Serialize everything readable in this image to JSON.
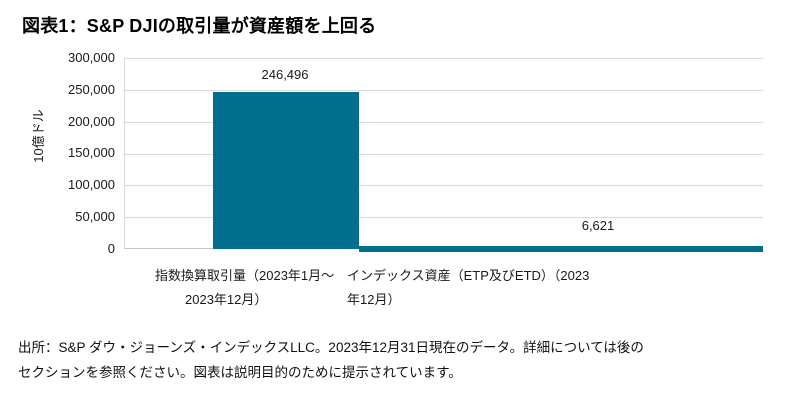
{
  "title": "図表1：S&P DJIの取引量が資産額を上回る",
  "chart_data": {
    "type": "bar",
    "title": "図表1：S&P DJIの取引量が資産額を上回る",
    "ylabel": "10億ドル",
    "ylim": [
      0,
      300000
    ],
    "ytick_interval": 50000,
    "ytick_labels": [
      "300,000",
      "250,000",
      "200,000",
      "150,000",
      "100,000",
      "50,000",
      "0"
    ],
    "categories": [
      "指数換算取引量（2023年1月～2023年12月）",
      "インデックス資産（ETP及びETD）（2023年12月）"
    ],
    "values": [
      246496,
      6621
    ],
    "value_labels": [
      "246,496",
      "6,621"
    ],
    "bar_color": "#006e8c",
    "gridline_color": "#d9d9d9",
    "grid": true,
    "legend": "none"
  },
  "xaxis_labels": {
    "cat1_line1": "指数換算取引量（2023年1月～",
    "cat1_line2": "2023年12月）",
    "cat2_line1": "インデックス資産（ETP及びETD）（2023",
    "cat2_line2": "年12月）"
  },
  "source_note": {
    "line1": "出所：S&P ダウ・ジョーンズ・インデックスLLC。2023年12月31日現在のデータ。詳細については後の",
    "line2": "セクションを参照ください。図表は説明目的のために提示されています。"
  }
}
